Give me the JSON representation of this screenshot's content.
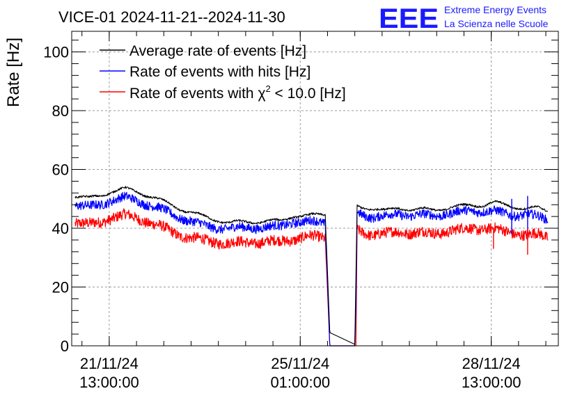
{
  "chart_data": {
    "type": "line",
    "title": "VICE-01 2024-11-21--2024-11-30",
    "ylabel": "Rate [Hz]",
    "xlabel": "",
    "ylim": [
      0,
      107
    ],
    "yticks": [
      0,
      20,
      40,
      60,
      80,
      100
    ],
    "xtick_labels": [
      {
        "date": "21/11/24",
        "time": "13:00:00",
        "hours": 13
      },
      {
        "date": "25/11/24",
        "time": "01:00:00",
        "hours": 97
      },
      {
        "date": "28/11/24",
        "time": "13:00:00",
        "hours": 181
      }
    ],
    "xlim_hours": [
      -3.5,
      210.5
    ],
    "grid": true,
    "legend_position": "top-left",
    "series": [
      {
        "name": "Average rate of events [Hz]",
        "color": "#000000",
        "x_hours": [
          -2,
          4,
          10,
          13,
          20,
          26,
          34,
          44,
          56,
          66,
          74,
          82,
          88,
          94,
          100,
          104,
          108,
          110,
          121,
          121.5,
          122,
          129,
          134,
          140,
          146,
          156,
          166,
          172,
          178,
          182,
          190,
          196,
          202,
          206
        ],
        "values": [
          51,
          50,
          51,
          52,
          53,
          52,
          50,
          47,
          44,
          42,
          42,
          42,
          42,
          44,
          44,
          44.5,
          45,
          4.5,
          0.5,
          24,
          48,
          47,
          46,
          47,
          46,
          46,
          47,
          48,
          48,
          49,
          48,
          47,
          47,
          46
        ]
      },
      {
        "name": "Rate of events with hits [Hz]",
        "color": "#0000ff",
        "x_hours": [
          -2,
          4,
          10,
          13,
          20,
          26,
          34,
          44,
          56,
          66,
          74,
          82,
          88,
          94,
          100,
          104,
          108,
          110,
          121,
          121.5,
          122,
          129,
          134,
          140,
          146,
          156,
          166,
          172,
          178,
          182,
          190,
          196,
          202,
          206
        ],
        "values": [
          48,
          47,
          48,
          49,
          50,
          49,
          47,
          44,
          41,
          40,
          40,
          40,
          40,
          42,
          42,
          42,
          42,
          0,
          0,
          14,
          46,
          44,
          44,
          45,
          44,
          44,
          45,
          46,
          46,
          46,
          45,
          45,
          44,
          43
        ]
      },
      {
        "name": "Rate of events with χ² < 10.0 [Hz]",
        "color": "#ff0000",
        "x_hours": [
          -2,
          4,
          10,
          13,
          20,
          26,
          34,
          44,
          56,
          66,
          74,
          82,
          88,
          94,
          100,
          104,
          108,
          110,
          121,
          121.5,
          122,
          129,
          134,
          140,
          146,
          156,
          166,
          172,
          178,
          182,
          190,
          196,
          202,
          206
        ],
        "values": [
          42,
          41,
          42,
          43,
          44,
          43,
          41,
          38,
          36,
          35,
          35,
          35,
          35,
          36,
          37,
          37,
          37,
          0,
          0,
          0,
          40,
          38,
          38,
          39,
          38,
          38,
          39,
          40,
          40,
          40,
          39,
          38,
          38,
          37
        ]
      }
    ],
    "spikes": [
      {
        "series": 1,
        "x_hours": 190,
        "low": 38,
        "high": 50
      },
      {
        "series": 1,
        "x_hours": 197,
        "low": 36,
        "high": 51
      },
      {
        "series": 2,
        "x_hours": 182,
        "low": 33,
        "high": 40
      },
      {
        "series": 2,
        "x_hours": 197,
        "low": 31,
        "high": 40
      }
    ]
  },
  "legend": {
    "items": [
      {
        "label": "Average rate of events [Hz]",
        "color": "#000000"
      },
      {
        "label": "Rate of events with hits [Hz]",
        "color": "#0000ff"
      },
      {
        "label_prefix": "Rate of events with ",
        "label_chi": "χ",
        "label_sup": "2",
        "label_suffix": " < 10.0 [Hz]",
        "color": "#ff0000"
      }
    ]
  },
  "logo": {
    "text": "EEE",
    "line1": "Extreme Energy Events",
    "line2": "La Scienza nelle Scuole"
  }
}
